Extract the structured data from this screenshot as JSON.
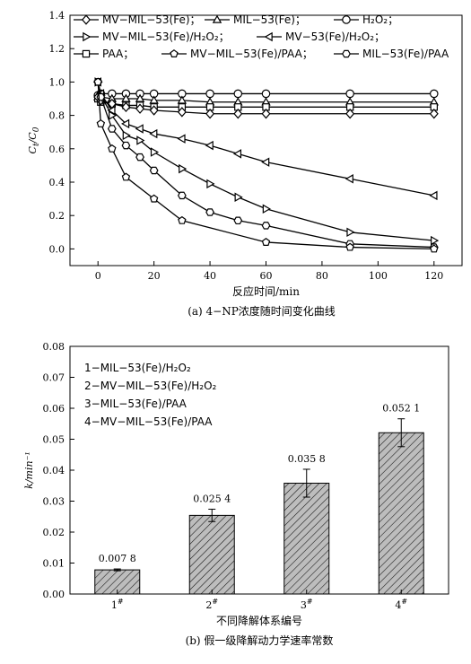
{
  "chart_data": [
    {
      "type": "line",
      "ylabel_main": "C",
      "ylabel_sub_t": "t",
      "ylabel_sep": "/",
      "ylabel_sub_0": "0",
      "xlabel": "反应时间/min",
      "caption": "(a) 4−NP浓度随时间变化曲线",
      "xlim": [
        -10,
        130
      ],
      "ylim": [
        -0.1,
        1.4
      ],
      "xticks": [
        "0",
        "20",
        "40",
        "60",
        "80",
        "100",
        "120"
      ],
      "yticks": [
        "0.0",
        "0.2",
        "0.4",
        "0.6",
        "0.8",
        "1.0",
        "1.2",
        "1.4"
      ],
      "legend": [
        {
          "text": "MV−MIL−53(Fe)；",
          "marker": "diamond"
        },
        {
          "text": "MIL−53(Fe)；",
          "marker": "triangle-up"
        },
        {
          "text": "H₂O₂；",
          "marker": "circle"
        },
        {
          "text": "MV−MIL−53(Fe)/H₂O₂；",
          "marker": "triangle-right"
        },
        {
          "text": "MV−53(Fe)/H₂O₂；",
          "marker": "triangle-left"
        },
        {
          "text": "PAA；",
          "marker": "square"
        },
        {
          "text": "MV−MIL−53(Fe)/PAA；",
          "marker": "pentagon"
        },
        {
          "text": "MIL−53(Fe)/PAA",
          "marker": "hexagon"
        }
      ],
      "series": [
        {
          "marker": "circle",
          "x": [
            0,
            1,
            5,
            10,
            15,
            20,
            30,
            40,
            50,
            60,
            90,
            120
          ],
          "y": [
            0.92,
            0.93,
            0.93,
            0.93,
            0.93,
            0.93,
            0.93,
            0.93,
            0.93,
            0.93,
            0.93,
            0.93
          ]
        },
        {
          "marker": "triangle-up",
          "x": [
            0,
            1,
            5,
            10,
            15,
            20,
            30,
            40,
            50,
            60,
            90,
            120
          ],
          "y": [
            0.91,
            0.91,
            0.9,
            0.9,
            0.9,
            0.89,
            0.89,
            0.88,
            0.88,
            0.88,
            0.88,
            0.88
          ]
        },
        {
          "marker": "square",
          "x": [
            0,
            1,
            5,
            10,
            15,
            20,
            30,
            40,
            50,
            60,
            90,
            120
          ],
          "y": [
            0.9,
            0.88,
            0.87,
            0.86,
            0.86,
            0.85,
            0.85,
            0.85,
            0.85,
            0.85,
            0.85,
            0.85
          ]
        },
        {
          "marker": "diamond",
          "x": [
            0,
            1,
            5,
            10,
            15,
            20,
            30,
            40,
            50,
            60,
            90,
            120
          ],
          "y": [
            0.91,
            0.89,
            0.87,
            0.85,
            0.84,
            0.83,
            0.82,
            0.81,
            0.81,
            0.81,
            0.81,
            0.81
          ]
        },
        {
          "marker": "triangle-left",
          "x": [
            0,
            1,
            5,
            10,
            15,
            20,
            30,
            40,
            50,
            60,
            90,
            120
          ],
          "y": [
            1.0,
            0.93,
            0.83,
            0.75,
            0.72,
            0.69,
            0.66,
            0.62,
            0.57,
            0.52,
            0.42,
            0.32
          ]
        },
        {
          "marker": "triangle-right",
          "x": [
            0,
            1,
            5,
            10,
            15,
            20,
            30,
            40,
            50,
            60,
            90,
            120
          ],
          "y": [
            1.0,
            0.92,
            0.8,
            0.68,
            0.65,
            0.58,
            0.48,
            0.39,
            0.31,
            0.24,
            0.1,
            0.05
          ]
        },
        {
          "marker": "hexagon",
          "x": [
            0,
            1,
            5,
            10,
            15,
            20,
            30,
            40,
            50,
            60,
            90,
            120
          ],
          "y": [
            1.0,
            0.91,
            0.72,
            0.62,
            0.55,
            0.47,
            0.32,
            0.22,
            0.17,
            0.14,
            0.03,
            0.01
          ]
        },
        {
          "marker": "pentagon",
          "x": [
            0,
            1,
            5,
            10,
            20,
            30,
            60,
            90,
            120
          ],
          "y": [
            1.0,
            0.75,
            0.6,
            0.43,
            0.3,
            0.17,
            0.04,
            0.01,
            0.0
          ]
        }
      ]
    },
    {
      "type": "bar",
      "ylabel": "k/min⁻¹",
      "xlabel": "不同降解体系编号",
      "caption": "(b) 假一级降解动力学速率常数",
      "ylim": [
        0,
        0.08
      ],
      "yticks": [
        "0.00",
        "0.01",
        "0.02",
        "0.03",
        "0.04",
        "0.05",
        "0.06",
        "0.07",
        "0.08"
      ],
      "categories": [
        "1#",
        "2#",
        "3#",
        "4#"
      ],
      "values": [
        0.0078,
        0.0254,
        0.0358,
        0.0521
      ],
      "errors": [
        0.0003,
        0.002,
        0.0045,
        0.0045
      ],
      "value_labels": [
        "0.007 8",
        "0.025 4",
        "0.035 8",
        "0.052 1"
      ],
      "legend": [
        "1−MIL−53(Fe)/H₂O₂",
        "2−MV−MIL−53(Fe)/H₂O₂",
        "3−MIL−53(Fe)/PAA",
        "4−MV−MIL−53(Fe)/PAA"
      ]
    }
  ]
}
